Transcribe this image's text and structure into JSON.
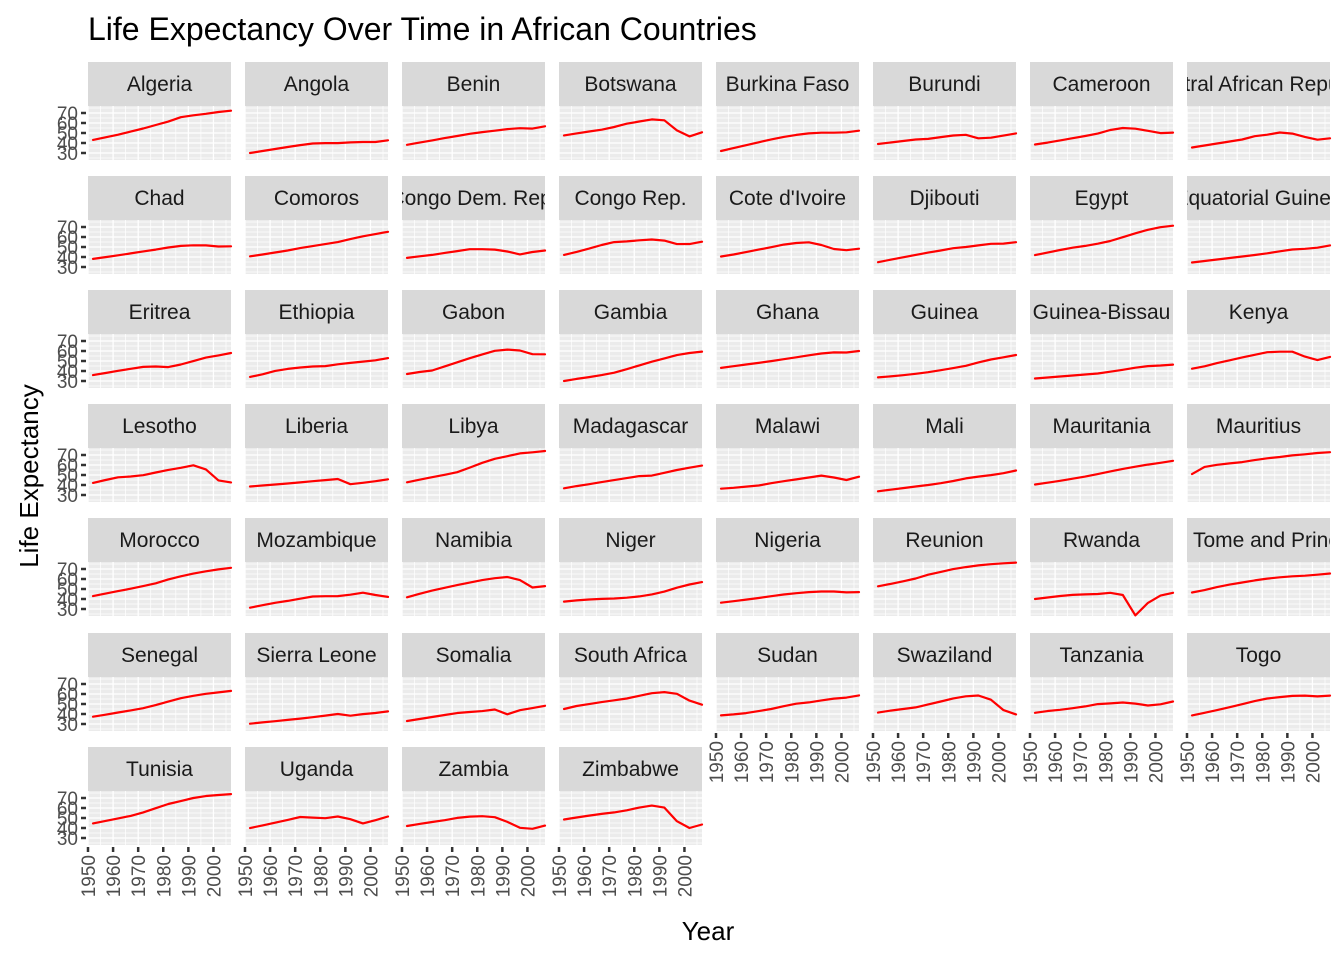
{
  "chart_data": {
    "type": "line",
    "title": "Life Expectancy Over Time in African Countries",
    "xlabel": "Year",
    "ylabel": "Life Expectancy",
    "x": [
      1952,
      1957,
      1962,
      1967,
      1972,
      1977,
      1982,
      1987,
      1992,
      1997,
      2002,
      2007
    ],
    "xlim": [
      1950,
      2007
    ],
    "ylim": [
      23,
      77
    ],
    "x_ticks": [
      1950,
      1960,
      1970,
      1980,
      1990,
      2000
    ],
    "y_ticks": [
      30,
      40,
      50,
      60,
      70
    ],
    "line_color": "#ff0000",
    "grid": true,
    "facets": 8,
    "series": [
      {
        "name": "Algeria",
        "values": [
          43.1,
          45.7,
          48.3,
          51.4,
          54.5,
          58.0,
          61.4,
          65.8,
          67.7,
          69.2,
          71.0,
          72.3
        ]
      },
      {
        "name": "Angola",
        "values": [
          30.0,
          32.0,
          34.0,
          36.0,
          37.9,
          39.5,
          39.9,
          39.9,
          40.6,
          41.0,
          41.0,
          42.7
        ]
      },
      {
        "name": "Benin",
        "values": [
          38.2,
          40.4,
          42.6,
          44.9,
          47.0,
          49.2,
          50.9,
          52.3,
          53.9,
          54.8,
          54.4,
          56.7
        ]
      },
      {
        "name": "Botswana",
        "values": [
          47.6,
          49.6,
          51.5,
          53.3,
          56.0,
          59.3,
          61.5,
          63.6,
          62.7,
          52.6,
          46.6,
          50.7
        ]
      },
      {
        "name": "Burkina Faso",
        "values": [
          32.0,
          34.9,
          37.8,
          40.7,
          43.6,
          46.1,
          48.1,
          49.6,
          50.3,
          50.3,
          50.7,
          52.3
        ]
      },
      {
        "name": "Burundi",
        "values": [
          39.0,
          40.5,
          42.0,
          43.5,
          44.1,
          45.9,
          47.5,
          48.2,
          44.7,
          45.3,
          47.4,
          49.6
        ]
      },
      {
        "name": "Cameroon",
        "values": [
          38.5,
          40.4,
          42.6,
          44.8,
          47.0,
          49.4,
          53.0,
          55.0,
          54.3,
          52.2,
          49.9,
          50.4
        ]
      },
      {
        "name": "Central African Republic",
        "values": [
          35.5,
          37.5,
          39.5,
          41.5,
          43.5,
          46.8,
          48.3,
          50.5,
          49.4,
          46.1,
          43.3,
          44.7
        ]
      },
      {
        "name": "Chad",
        "values": [
          38.1,
          39.9,
          41.7,
          43.6,
          45.6,
          47.4,
          49.5,
          51.1,
          51.7,
          51.6,
          50.5,
          50.7
        ]
      },
      {
        "name": "Comoros",
        "values": [
          40.7,
          42.5,
          44.5,
          46.5,
          48.9,
          50.9,
          52.9,
          54.9,
          57.9,
          60.7,
          62.97,
          65.2
        ]
      },
      {
        "name": "Congo Dem. Rep.",
        "values": [
          39.1,
          40.7,
          42.1,
          44.1,
          45.9,
          47.8,
          47.8,
          47.4,
          45.5,
          42.6,
          45.0,
          46.5
        ]
      },
      {
        "name": "Congo Rep.",
        "values": [
          42.1,
          45.1,
          48.4,
          52.0,
          54.9,
          55.6,
          56.7,
          57.5,
          56.4,
          52.96,
          52.97,
          55.3
        ]
      },
      {
        "name": "Cote d'Ivoire",
        "values": [
          40.5,
          42.5,
          44.9,
          47.4,
          49.8,
          52.4,
          53.98,
          54.7,
          52.0,
          47.99,
          46.8,
          48.3
        ]
      },
      {
        "name": "Djibouti",
        "values": [
          34.8,
          37.3,
          39.7,
          42.1,
          44.4,
          46.5,
          48.8,
          50.0,
          51.6,
          53.2,
          53.4,
          54.8
        ]
      },
      {
        "name": "Egypt",
        "values": [
          41.9,
          44.4,
          46.99,
          49.3,
          51.1,
          53.3,
          56.0,
          59.8,
          63.7,
          67.2,
          69.8,
          71.3
        ]
      },
      {
        "name": "Equatorial Guinea",
        "values": [
          34.5,
          35.98,
          37.5,
          38.99,
          40.5,
          42.0,
          43.7,
          45.7,
          47.5,
          48.2,
          49.3,
          51.6
        ]
      },
      {
        "name": "Eritrea",
        "values": [
          35.9,
          38.0,
          40.2,
          42.2,
          44.1,
          44.5,
          43.9,
          46.5,
          49.99,
          53.4,
          55.6,
          58.0
        ]
      },
      {
        "name": "Ethiopia",
        "values": [
          34.1,
          36.7,
          40.1,
          42.1,
          43.5,
          44.5,
          44.9,
          46.7,
          48.1,
          49.4,
          50.7,
          52.9
        ]
      },
      {
        "name": "Gabon",
        "values": [
          37.0,
          38.99,
          40.5,
          44.6,
          48.7,
          52.8,
          56.6,
          60.2,
          61.4,
          60.5,
          56.8,
          56.7
        ]
      },
      {
        "name": "Gambia",
        "values": [
          30.0,
          32.1,
          33.9,
          35.9,
          38.3,
          41.8,
          45.6,
          49.3,
          52.6,
          55.9,
          58.0,
          59.4
        ]
      },
      {
        "name": "Ghana",
        "values": [
          43.1,
          44.8,
          46.5,
          48.1,
          49.9,
          51.8,
          53.7,
          55.7,
          57.5,
          58.6,
          58.5,
          60.0
        ]
      },
      {
        "name": "Guinea",
        "values": [
          33.6,
          34.6,
          35.8,
          37.2,
          38.8,
          40.8,
          42.9,
          45.2,
          48.6,
          51.5,
          53.7,
          56.0
        ]
      },
      {
        "name": "Guinea-Bissau",
        "values": [
          32.5,
          33.5,
          34.5,
          35.5,
          36.5,
          37.5,
          39.3,
          41.2,
          43.3,
          44.9,
          45.5,
          46.4
        ]
      },
      {
        "name": "Kenya",
        "values": [
          42.3,
          44.7,
          47.9,
          50.7,
          53.6,
          56.2,
          58.8,
          59.3,
          59.3,
          54.4,
          50.99,
          54.1
        ]
      },
      {
        "name": "Lesotho",
        "values": [
          42.1,
          45.0,
          47.7,
          48.5,
          49.8,
          52.5,
          55.1,
          57.2,
          59.7,
          55.6,
          44.6,
          42.6
        ]
      },
      {
        "name": "Liberia",
        "values": [
          38.5,
          39.5,
          40.5,
          41.5,
          42.6,
          43.8,
          44.9,
          46.0,
          40.8,
          42.2,
          43.8,
          45.7
        ]
      },
      {
        "name": "Libya",
        "values": [
          42.7,
          45.3,
          47.8,
          50.2,
          52.8,
          57.4,
          62.2,
          66.2,
          68.8,
          71.6,
          72.7,
          74.0
        ]
      },
      {
        "name": "Madagascar",
        "values": [
          36.7,
          38.9,
          40.8,
          42.9,
          44.9,
          46.9,
          48.9,
          49.4,
          52.2,
          55.0,
          57.3,
          59.4
        ]
      },
      {
        "name": "Malawi",
        "values": [
          36.3,
          37.2,
          38.4,
          39.5,
          41.8,
          43.8,
          45.6,
          47.5,
          49.4,
          47.5,
          45.0,
          48.3
        ]
      },
      {
        "name": "Mali",
        "values": [
          33.7,
          35.3,
          36.9,
          38.5,
          40.0,
          41.8,
          44.0,
          46.6,
          48.4,
          49.9,
          51.8,
          54.5
        ]
      },
      {
        "name": "Mauritania",
        "values": [
          40.5,
          42.3,
          44.2,
          46.3,
          48.4,
          50.9,
          53.6,
          56.1,
          58.3,
          60.4,
          62.2,
          64.2
        ]
      },
      {
        "name": "Mauritius",
        "values": [
          50.98,
          58.1,
          60.2,
          61.6,
          62.9,
          64.9,
          66.7,
          68.0,
          69.6,
          70.7,
          72.0,
          72.8
        ]
      },
      {
        "name": "Morocco",
        "values": [
          42.9,
          45.4,
          47.9,
          50.3,
          52.9,
          55.7,
          59.6,
          62.7,
          65.4,
          67.7,
          69.6,
          71.2
        ]
      },
      {
        "name": "Mozambique",
        "values": [
          31.3,
          33.8,
          36.2,
          38.1,
          40.3,
          42.5,
          42.8,
          42.9,
          44.3,
          46.3,
          44.0,
          42.1
        ]
      },
      {
        "name": "Namibia",
        "values": [
          41.7,
          45.2,
          48.4,
          51.2,
          53.9,
          56.4,
          58.97,
          60.8,
          61.99,
          58.9,
          51.5,
          52.9
        ]
      },
      {
        "name": "Niger",
        "values": [
          37.4,
          38.6,
          39.5,
          40.1,
          40.5,
          41.3,
          42.6,
          44.6,
          47.4,
          51.3,
          54.5,
          56.9
        ]
      },
      {
        "name": "Nigeria",
        "values": [
          36.3,
          37.8,
          39.4,
          41.0,
          42.8,
          44.5,
          45.8,
          46.9,
          47.5,
          47.5,
          46.6,
          46.9
        ]
      },
      {
        "name": "Reunion",
        "values": [
          52.7,
          55.1,
          57.7,
          60.5,
          64.3,
          67.1,
          69.9,
          71.9,
          73.6,
          74.8,
          75.7,
          76.4
        ]
      },
      {
        "name": "Rwanda",
        "values": [
          40.0,
          41.5,
          43.0,
          44.1,
          44.6,
          45.0,
          46.2,
          44.0,
          23.6,
          36.1,
          43.4,
          46.2
        ]
      },
      {
        "name": "Sao Tome and Principe",
        "values": [
          46.5,
          48.9,
          51.9,
          54.4,
          56.5,
          58.6,
          60.4,
          61.7,
          62.7,
          63.3,
          64.3,
          65.5
        ]
      },
      {
        "name": "Senegal",
        "values": [
          37.3,
          39.3,
          41.5,
          43.6,
          45.8,
          48.9,
          52.4,
          55.8,
          58.2,
          60.2,
          61.6,
          63.1
        ]
      },
      {
        "name": "Sierra Leone",
        "values": [
          30.3,
          31.6,
          32.8,
          34.1,
          35.4,
          36.8,
          38.4,
          40.0,
          38.3,
          39.9,
          41.0,
          42.6
        ]
      },
      {
        "name": "Somalia",
        "values": [
          32.98,
          34.98,
          36.98,
          38.98,
          40.97,
          41.97,
          42.96,
          44.5,
          39.7,
          43.8,
          45.9,
          48.2
        ]
      },
      {
        "name": "South Africa",
        "values": [
          45.0,
          48.0,
          49.95,
          51.9,
          53.7,
          55.5,
          58.2,
          60.8,
          61.9,
          60.2,
          53.4,
          49.3
        ]
      },
      {
        "name": "Sudan",
        "values": [
          38.6,
          39.6,
          40.9,
          42.9,
          44.99,
          47.8,
          50.3,
          51.6,
          53.6,
          55.4,
          56.4,
          58.6
        ]
      },
      {
        "name": "Swaziland",
        "values": [
          41.4,
          43.4,
          44.99,
          46.6,
          49.6,
          52.5,
          55.6,
          57.7,
          58.5,
          54.3,
          43.9,
          39.6
        ]
      },
      {
        "name": "Tanzania",
        "values": [
          41.2,
          42.97,
          44.2,
          45.8,
          47.6,
          49.9,
          50.6,
          51.5,
          50.4,
          48.5,
          49.7,
          52.5
        ]
      },
      {
        "name": "Togo",
        "values": [
          38.6,
          41.2,
          43.9,
          46.8,
          49.8,
          52.9,
          55.5,
          56.9,
          58.1,
          58.4,
          57.6,
          58.4
        ]
      },
      {
        "name": "Tunisia",
        "values": [
          44.6,
          47.1,
          49.6,
          52.1,
          55.6,
          59.8,
          64.0,
          66.9,
          70.0,
          71.97,
          73.0,
          73.9
        ]
      },
      {
        "name": "Uganda",
        "values": [
          39.98,
          42.6,
          45.3,
          48.1,
          51.0,
          50.4,
          49.8,
          51.5,
          48.8,
          44.6,
          47.8,
          51.5
        ]
      },
      {
        "name": "Zambia",
        "values": [
          42.0,
          44.1,
          46.0,
          47.8,
          50.1,
          51.4,
          51.8,
          50.8,
          46.1,
          40.2,
          39.2,
          42.4
        ]
      },
      {
        "name": "Zimbabwe",
        "values": [
          48.5,
          50.5,
          52.4,
          54.1,
          55.6,
          57.7,
          60.4,
          62.4,
          60.4,
          46.8,
          40.0,
          43.5
        ]
      }
    ]
  }
}
